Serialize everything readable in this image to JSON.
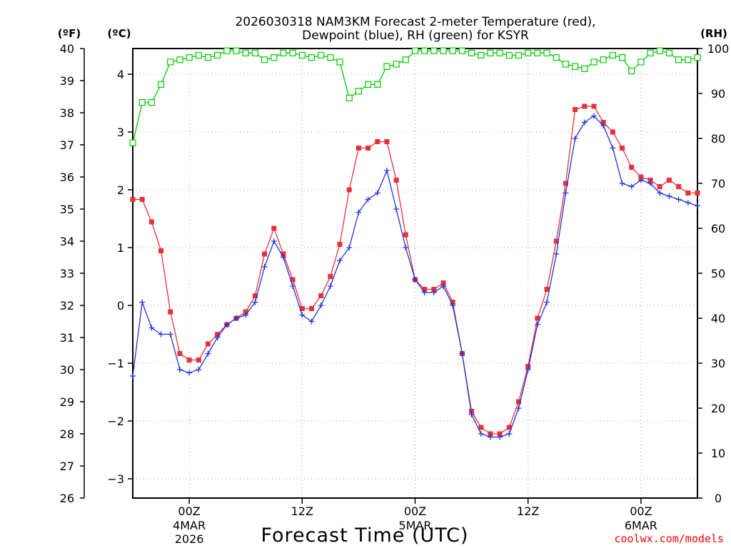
{
  "chart_data": {
    "type": "line",
    "title_line1": "2026030318 NAM3KM Forecast 2-meter Temperature (red),",
    "title_line2": "Dewpoint (blue), RH (green) for KSYR",
    "xlabel": "Forecast Time (UTC)",
    "watermark": "coolwx.com/models",
    "left_unit_f": "(ºF)",
    "left_unit_c": "(ºC)",
    "right_unit": "(RH)",
    "x_hours_range": [
      0,
      60
    ],
    "y_f_range": [
      26,
      40
    ],
    "y_f_ticks": [
      "26",
      "27",
      "28",
      "29",
      "30",
      "31",
      "32",
      "33",
      "34",
      "35",
      "36",
      "37",
      "38",
      "39",
      "40"
    ],
    "y_c_ticks": [
      {
        "value": -3,
        "label": "−3"
      },
      {
        "value": -2,
        "label": "−2"
      },
      {
        "value": -1,
        "label": "−1"
      },
      {
        "value": 0,
        "label": "0"
      },
      {
        "value": 1,
        "label": "1"
      },
      {
        "value": 2,
        "label": "2"
      },
      {
        "value": 3,
        "label": "3"
      },
      {
        "value": 4,
        "label": "4"
      }
    ],
    "y_rh_range": [
      0,
      100
    ],
    "y_rh_ticks": [
      "0",
      "10",
      "20",
      "30",
      "40",
      "50",
      "60",
      "70",
      "80",
      "90",
      "100"
    ],
    "x_ticks": [
      {
        "hour": 6,
        "label": "00Z",
        "sub1": "4MAR",
        "sub2": "2026"
      },
      {
        "hour": 18,
        "label": "12Z",
        "sub1": "",
        "sub2": ""
      },
      {
        "hour": 30,
        "label": "00Z",
        "sub1": "5MAR",
        "sub2": ""
      },
      {
        "hour": 42,
        "label": "12Z",
        "sub1": "",
        "sub2": ""
      },
      {
        "hour": 54,
        "label": "00Z",
        "sub1": "6MAR",
        "sub2": ""
      }
    ],
    "series": [
      {
        "name": "2-meter Temperature",
        "units": "F",
        "color": "#e8303a",
        "marker": "filled-square",
        "values": [
          35.3,
          35.3,
          34.6,
          33.7,
          31.8,
          30.5,
          30.3,
          30.3,
          30.8,
          31.1,
          31.4,
          31.6,
          31.8,
          32.3,
          33.6,
          34.4,
          33.6,
          32.8,
          31.9,
          31.9,
          32.3,
          32.9,
          33.9,
          35.6,
          36.9,
          36.9,
          37.1,
          37.1,
          35.9,
          34.2,
          32.8,
          32.5,
          32.5,
          32.7,
          32.1,
          30.5,
          28.7,
          28.2,
          28.0,
          28.0,
          28.2,
          29.0,
          30.1,
          31.6,
          32.5,
          34.0,
          35.8,
          38.1,
          38.2,
          38.2,
          37.7,
          37.4,
          36.9,
          36.3,
          36.0,
          35.9,
          35.7,
          35.9,
          35.7,
          35.5,
          35.5
        ],
        "count": 61
      },
      {
        "name": "Dewpoint",
        "units": "F",
        "color": "#2233dd",
        "marker": "plus",
        "values": [
          29.8,
          32.1,
          31.3,
          31.1,
          31.1,
          30.0,
          29.9,
          30.0,
          30.5,
          31.0,
          31.4,
          31.6,
          31.7,
          32.1,
          33.2,
          34.0,
          33.5,
          32.6,
          31.7,
          31.5,
          32.0,
          32.6,
          33.4,
          33.8,
          34.9,
          35.3,
          35.5,
          36.2,
          35.0,
          33.8,
          32.8,
          32.4,
          32.4,
          32.6,
          32.0,
          30.5,
          28.6,
          28.0,
          27.9,
          27.9,
          28.0,
          28.8,
          30.0,
          31.4,
          32.1,
          33.6,
          35.5,
          37.2,
          37.7,
          37.9,
          37.6,
          36.9,
          35.8,
          35.7,
          35.9,
          35.8,
          35.5,
          35.4,
          35.3,
          35.2,
          35.1
        ],
        "count": 61
      },
      {
        "name": "Relative Humidity",
        "units": "%",
        "color": "#00cc00",
        "marker": "open-square",
        "values": [
          79,
          88,
          88,
          92,
          97,
          97.5,
          98,
          98.5,
          98,
          98.5,
          99.5,
          99.5,
          99,
          99,
          97.5,
          98,
          99,
          99,
          98.5,
          98,
          98.5,
          98,
          97,
          89,
          90.5,
          92,
          92,
          96,
          96.5,
          97.5,
          99.5,
          99.5,
          99.5,
          99.5,
          99.5,
          99.5,
          99,
          98.5,
          99,
          99,
          98.5,
          98.5,
          99,
          99,
          99,
          98,
          96.5,
          96,
          95.5,
          97,
          97.5,
          98.5,
          98,
          95,
          97,
          99,
          99.5,
          99,
          97.5,
          97.5,
          98
        ],
        "count": 61
      }
    ]
  }
}
